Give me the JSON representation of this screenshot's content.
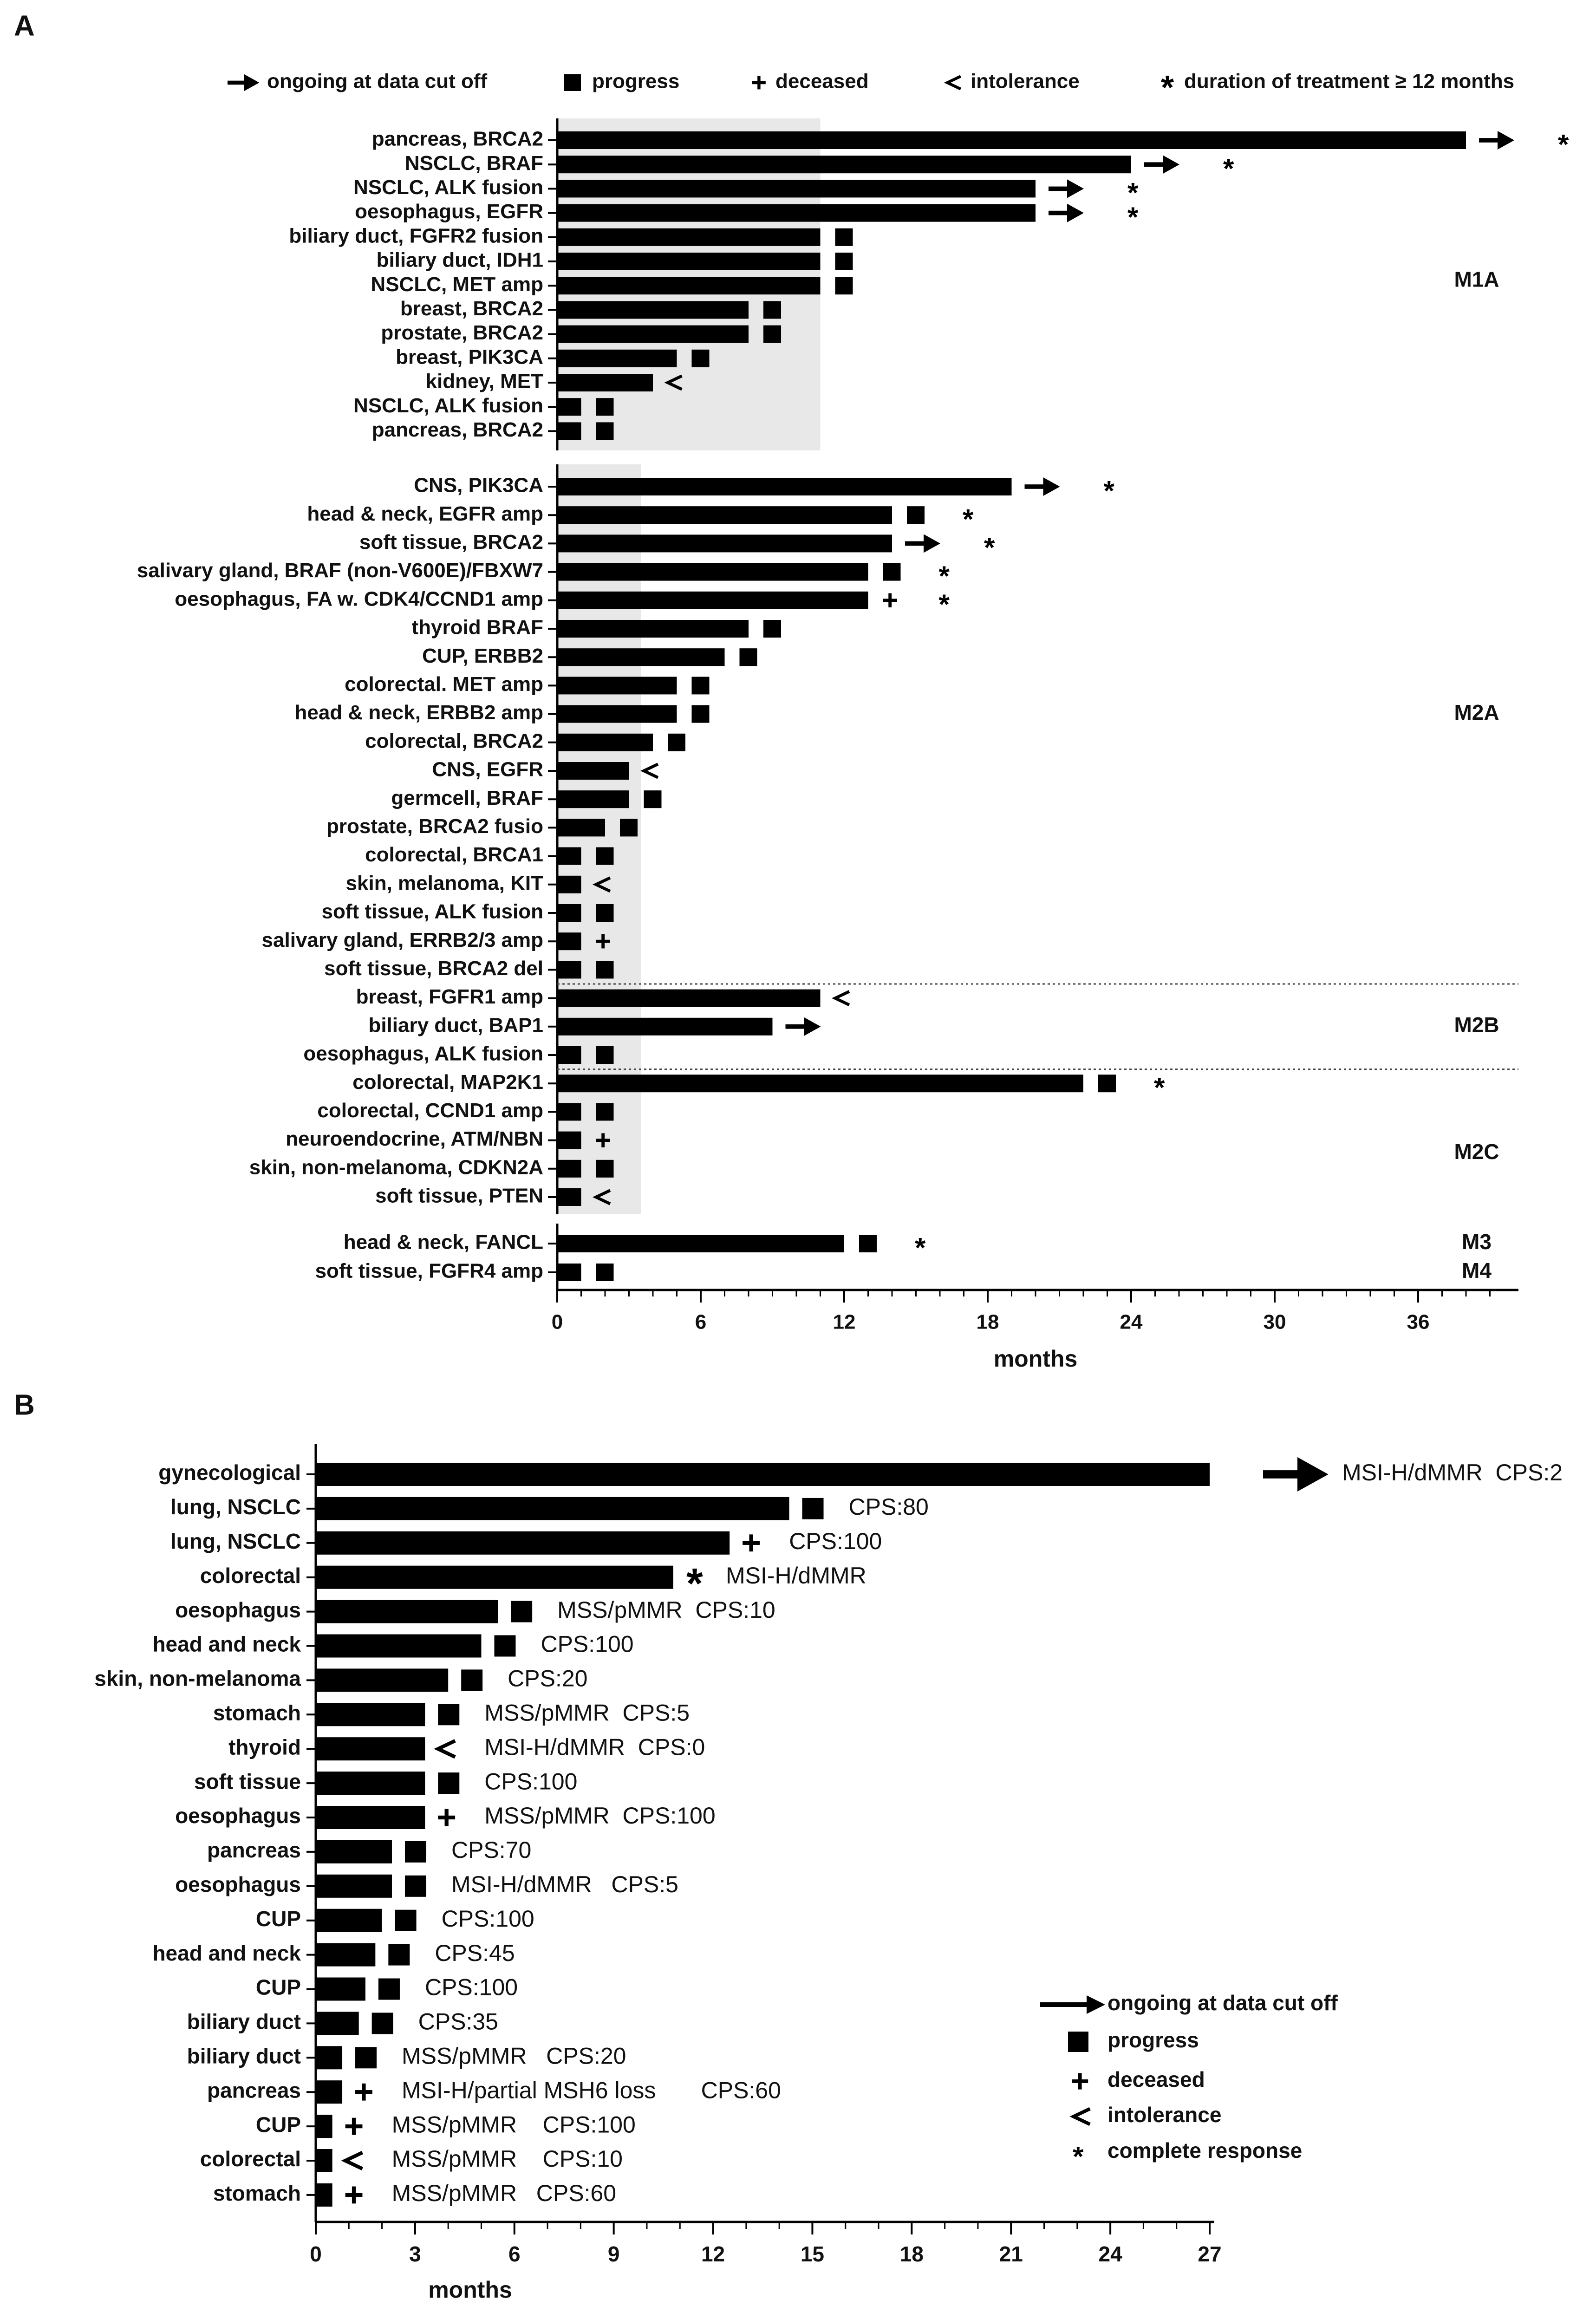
{
  "chart_data": [
    {
      "type": "bar",
      "panel_label": "A",
      "xlabel": "months",
      "xlim": [
        0,
        40
      ],
      "xticks": [
        0,
        6,
        12,
        18,
        24,
        30,
        36
      ],
      "shade_regions": [
        {
          "from_row": 0,
          "to_row": 12,
          "x_from": 0,
          "x_to": 11
        },
        {
          "from_row": 13,
          "to_row": 35,
          "x_from": 0,
          "x_to": 3.5
        }
      ],
      "legend": [
        {
          "symbol": "arrow",
          "label": "ongoing at data cut off"
        },
        {
          "symbol": "square",
          "label": "progress"
        },
        {
          "symbol": "plus",
          "label": "deceased"
        },
        {
          "symbol": "lt",
          "label": "intolerance"
        },
        {
          "symbol": "star",
          "label": "duration of treatment ≥ 12 months"
        }
      ],
      "groups": [
        {
          "name": "M1A",
          "from_row": 0,
          "to_row": 12
        },
        {
          "name": "M2A",
          "from_row": 13,
          "to_row": 30
        },
        {
          "name": "M2B",
          "from_row": 31,
          "to_row": 33
        },
        {
          "name": "M2C",
          "from_row": 34,
          "to_row": 38
        },
        {
          "name": "M3",
          "from_row": 39,
          "to_row": 39
        },
        {
          "name": "M4",
          "from_row": 40,
          "to_row": 40
        }
      ],
      "rows": [
        {
          "label": "pancreas, BRCA2",
          "value": 38,
          "marker": "arrow",
          "star": true
        },
        {
          "label": "NSCLC, BRAF",
          "value": 24,
          "marker": "arrow",
          "star": true
        },
        {
          "label": "NSCLC, ALK fusion",
          "value": 20,
          "marker": "arrow",
          "star": true
        },
        {
          "label": "oesophagus, EGFR",
          "value": 20,
          "marker": "arrow",
          "star": true
        },
        {
          "label": "biliary duct, FGFR2 fusion",
          "value": 11,
          "marker": "square",
          "star": false
        },
        {
          "label": "biliary duct, IDH1",
          "value": 11,
          "marker": "square",
          "star": false
        },
        {
          "label": "NSCLC, MET amp",
          "value": 11,
          "marker": "square",
          "star": false
        },
        {
          "label": "breast, BRCA2",
          "value": 8,
          "marker": "square",
          "star": false
        },
        {
          "label": "prostate, BRCA2",
          "value": 8,
          "marker": "square",
          "star": false
        },
        {
          "label": "breast, PIK3CA",
          "value": 5,
          "marker": "square",
          "star": false
        },
        {
          "label": "kidney, MET",
          "value": 4,
          "marker": "lt",
          "star": false
        },
        {
          "label": "NSCLC, ALK fusion",
          "value": 1,
          "marker": "square",
          "star": false
        },
        {
          "label": "pancreas, BRCA2",
          "value": 1,
          "marker": "square",
          "star": false
        },
        {
          "label": "CNS, PIK3CA",
          "value": 19,
          "marker": "arrow",
          "star": true
        },
        {
          "label": "head & neck, EGFR amp",
          "value": 14,
          "marker": "square",
          "star": true
        },
        {
          "label": "soft tissue, BRCA2",
          "value": 14,
          "marker": "arrow",
          "star": true
        },
        {
          "label": "salivary gland, BRAF (non-V600E)/FBXW7",
          "value": 13,
          "marker": "square",
          "star": true
        },
        {
          "label": "oesophagus, FA w. CDK4/CCND1 amp",
          "value": 13,
          "marker": "plus",
          "star": true
        },
        {
          "label": "thyroid BRAF",
          "value": 8,
          "marker": "square",
          "star": false
        },
        {
          "label": "CUP, ERBB2",
          "value": 7,
          "marker": "square",
          "star": false
        },
        {
          "label": "colorectal. MET amp",
          "value": 5,
          "marker": "square",
          "star": false
        },
        {
          "label": "head & neck, ERBB2 amp",
          "value": 5,
          "marker": "square",
          "star": false
        },
        {
          "label": "colorectal, BRCA2",
          "value": 4,
          "marker": "square",
          "star": false
        },
        {
          "label": "CNS, EGFR",
          "value": 3,
          "marker": "lt",
          "star": false
        },
        {
          "label": "germcell, BRAF",
          "value": 3,
          "marker": "square",
          "star": false
        },
        {
          "label": "prostate, BRCA2 fusio",
          "value": 2,
          "marker": "square",
          "star": false
        },
        {
          "label": "colorectal, BRCA1",
          "value": 1,
          "marker": "square",
          "star": false
        },
        {
          "label": "skin, melanoma, KIT",
          "value": 1,
          "marker": "lt",
          "star": false
        },
        {
          "label": "soft tissue, ALK fusion",
          "value": 1,
          "marker": "square",
          "star": false
        },
        {
          "label": "salivary gland, ERRB2/3 amp",
          "value": 1,
          "marker": "plus",
          "star": false
        },
        {
          "label": "soft tissue, BRCA2 del",
          "value": 1,
          "marker": "square",
          "star": false
        },
        {
          "label": "breast, FGFR1 amp",
          "value": 11,
          "marker": "lt",
          "star": false
        },
        {
          "label": "biliary duct, BAP1",
          "value": 9,
          "marker": "arrow",
          "star": false
        },
        {
          "label": "oesophagus, ALK fusion",
          "value": 1,
          "marker": "square",
          "star": false
        },
        {
          "label": "colorectal, MAP2K1",
          "value": 22,
          "marker": "square",
          "star": true
        },
        {
          "label": "colorectal, CCND1 amp",
          "value": 1,
          "marker": "square",
          "star": false
        },
        {
          "label": "neuroendocrine, ATM/NBN",
          "value": 1,
          "marker": "plus",
          "star": false
        },
        {
          "label": "skin, non-melanoma, CDKN2A",
          "value": 1,
          "marker": "square",
          "star": false
        },
        {
          "label": "soft tissue, PTEN",
          "value": 1,
          "marker": "lt",
          "star": false
        },
        {
          "label": "head & neck, FANCL",
          "value": 12,
          "marker": "square",
          "star": true
        },
        {
          "label": "soft tissue, FGFR4 amp",
          "value": 1,
          "marker": "square",
          "star": false
        }
      ]
    },
    {
      "type": "bar",
      "panel_label": "B",
      "xlabel": "months",
      "xlim": [
        0,
        27
      ],
      "xticks": [
        0,
        3,
        6,
        9,
        12,
        15,
        18,
        21,
        24,
        27
      ],
      "legend": [
        {
          "symbol": "arrow",
          "label": "ongoing at data cut off"
        },
        {
          "symbol": "square",
          "label": "progress"
        },
        {
          "symbol": "plus",
          "label": "deceased"
        },
        {
          "symbol": "lt",
          "label": "intolerance"
        },
        {
          "symbol": "star",
          "label": "complete response"
        }
      ],
      "rows": [
        {
          "label": "gynecological",
          "value": 27,
          "marker": "arrow",
          "annotation": "MSI-H/dMMR  CPS:2"
        },
        {
          "label": "lung, NSCLC",
          "value": 14.3,
          "marker": "square",
          "annotation": "CPS:80"
        },
        {
          "label": "lung, NSCLC",
          "value": 12.5,
          "marker": "plus",
          "annotation": "CPS:100"
        },
        {
          "label": "colorectal",
          "value": 10.8,
          "marker": "star",
          "annotation": "MSI-H/dMMR"
        },
        {
          "label": "oesophagus",
          "value": 5.5,
          "marker": "square",
          "annotation": "MSS/pMMR  CPS:10"
        },
        {
          "label": "head and neck",
          "value": 5,
          "marker": "square",
          "annotation": "CPS:100"
        },
        {
          "label": "skin, non-melanoma",
          "value": 4,
          "marker": "square",
          "annotation": "CPS:20"
        },
        {
          "label": "stomach",
          "value": 3.3,
          "marker": "square",
          "annotation": "MSS/pMMR  CPS:5"
        },
        {
          "label": "thyroid",
          "value": 3.3,
          "marker": "lt",
          "annotation": "MSI-H/dMMR  CPS:0"
        },
        {
          "label": "soft tissue",
          "value": 3.3,
          "marker": "square",
          "annotation": "CPS:100"
        },
        {
          "label": "oesophagus",
          "value": 3.3,
          "marker": "plus",
          "annotation": "MSS/pMMR  CPS:100"
        },
        {
          "label": "pancreas",
          "value": 2.3,
          "marker": "square",
          "annotation": "CPS:70"
        },
        {
          "label": "oesophagus",
          "value": 2.3,
          "marker": "square",
          "annotation": "MSI-H/dMMR   CPS:5"
        },
        {
          "label": "CUP",
          "value": 2,
          "marker": "square",
          "annotation": "CPS:100"
        },
        {
          "label": "head and neck",
          "value": 1.8,
          "marker": "square",
          "annotation": "CPS:45"
        },
        {
          "label": "CUP",
          "value": 1.5,
          "marker": "square",
          "annotation": "CPS:100"
        },
        {
          "label": "biliary duct",
          "value": 1.3,
          "marker": "square",
          "annotation": "CPS:35"
        },
        {
          "label": "biliary duct",
          "value": 0.8,
          "marker": "square",
          "annotation": "MSS/pMMR   CPS:20"
        },
        {
          "label": "pancreas",
          "value": 0.8,
          "marker": "plus",
          "annotation": "MSI-H/partial MSH6 loss       CPS:60"
        },
        {
          "label": "CUP",
          "value": 0.5,
          "marker": "plus",
          "annotation": "MSS/pMMR    CPS:100"
        },
        {
          "label": "colorectal",
          "value": 0.5,
          "marker": "lt",
          "annotation": "MSS/pMMR    CPS:10"
        },
        {
          "label": "stomach",
          "value": 0.5,
          "marker": "plus",
          "annotation": "MSS/pMMR   CPS:60"
        }
      ]
    }
  ]
}
